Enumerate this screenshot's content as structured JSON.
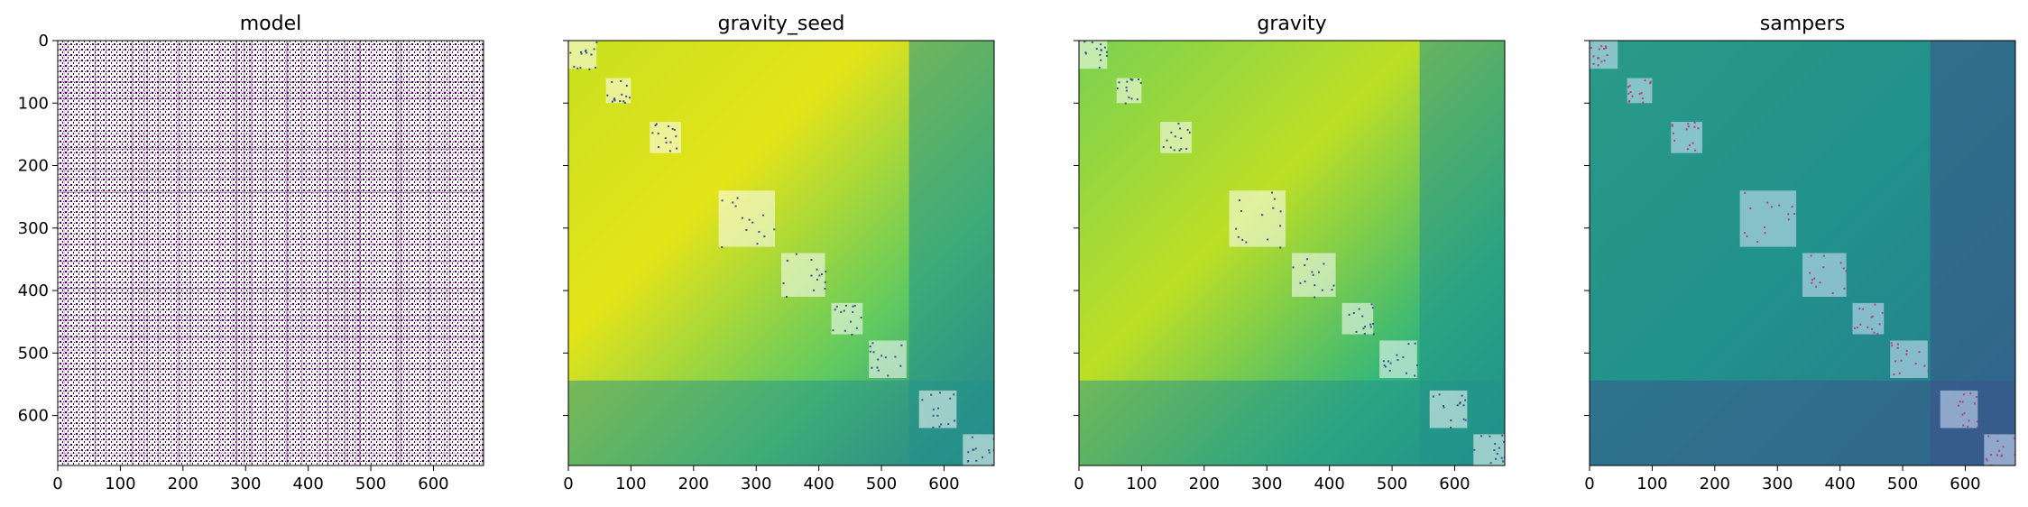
{
  "chart_data": [
    {
      "type": "heatmap",
      "title": "model",
      "colormap": "purple-on-white binary",
      "colors": [
        "#ffffff",
        "#440154"
      ],
      "xlim": [
        0,
        680
      ],
      "ylim": [
        680,
        0
      ],
      "xticks": [
        0,
        100,
        200,
        300,
        400,
        500,
        600
      ],
      "yticks": [
        0,
        100,
        200,
        300,
        400,
        500,
        600
      ],
      "xticklabels": [
        "0",
        "100",
        "200",
        "300",
        "400",
        "500",
        "600"
      ],
      "yticklabels": [
        "0",
        "100",
        "200",
        "300",
        "400",
        "500",
        "600"
      ],
      "show_yticklabels": true
    },
    {
      "type": "heatmap",
      "title": "gravity_seed",
      "colormap": "viridis",
      "colors": [
        "#440154",
        "#3b528b",
        "#21918c",
        "#5ec962",
        "#fde725"
      ],
      "xlim": [
        0,
        680
      ],
      "ylim": [
        680,
        0
      ],
      "xticks": [
        0,
        100,
        200,
        300,
        400,
        500,
        600
      ],
      "yticks": [
        0,
        100,
        200,
        300,
        400,
        500,
        600
      ],
      "xticklabels": [
        "0",
        "100",
        "200",
        "300",
        "400",
        "500",
        "600"
      ],
      "show_yticklabels": false
    },
    {
      "type": "heatmap",
      "title": "gravity",
      "colormap": "viridis",
      "colors": [
        "#440154",
        "#3b528b",
        "#21918c",
        "#5ec962",
        "#fde725"
      ],
      "xlim": [
        0,
        680
      ],
      "ylim": [
        680,
        0
      ],
      "xticks": [
        0,
        100,
        200,
        300,
        400,
        500,
        600
      ],
      "yticks": [
        0,
        100,
        200,
        300,
        400,
        500,
        600
      ],
      "xticklabels": [
        "0",
        "100",
        "200",
        "300",
        "400",
        "500",
        "600"
      ],
      "show_yticklabels": false
    },
    {
      "type": "heatmap",
      "title": "sampers",
      "colormap": "viridis",
      "colors": [
        "#440154",
        "#3b528b",
        "#21918c",
        "#5ec962",
        "#fde725"
      ],
      "xlim": [
        0,
        680
      ],
      "ylim": [
        680,
        0
      ],
      "xticks": [
        0,
        100,
        200,
        300,
        400,
        500,
        600
      ],
      "yticks": [
        0,
        100,
        200,
        300,
        400,
        500,
        600
      ],
      "xticklabels": [
        "0",
        "100",
        "200",
        "300",
        "400",
        "500",
        "600"
      ],
      "show_yticklabels": false
    }
  ]
}
